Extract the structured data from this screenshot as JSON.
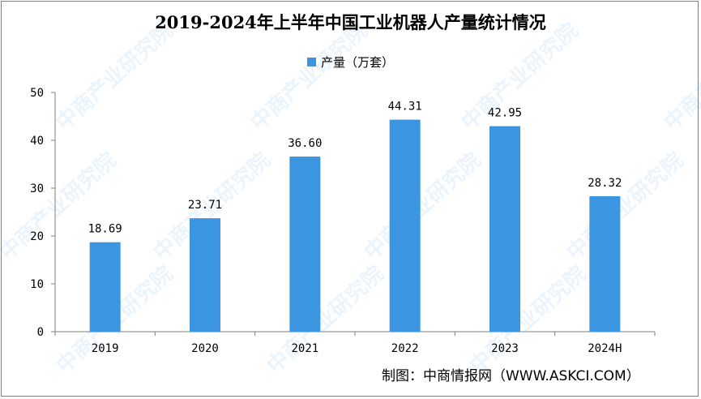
{
  "title": "2019-2024年上半年中国工业机器人产量统计情况",
  "source": "制图：中商情报网（WWW.ASKCI.COM）",
  "watermark_text": "中商产业研究院",
  "colors": {
    "bar": "#3b95e0",
    "axis": "#7f7f7f",
    "text": "#000000"
  },
  "chart_data": {
    "type": "bar",
    "categories": [
      "2019",
      "2020",
      "2021",
      "2022",
      "2023",
      "2024H"
    ],
    "series": [
      {
        "name": "产量（万套）",
        "values": [
          18.69,
          23.71,
          36.6,
          44.31,
          42.95,
          28.32
        ]
      }
    ],
    "data_labels": [
      "18.69",
      "23.71",
      "36.60",
      "44.31",
      "42.95",
      "28.32"
    ],
    "yticks": [
      "0",
      "10",
      "20",
      "30",
      "40",
      "50"
    ],
    "ylim": [
      0,
      50
    ],
    "grid": false,
    "legend_position": "top-center"
  }
}
